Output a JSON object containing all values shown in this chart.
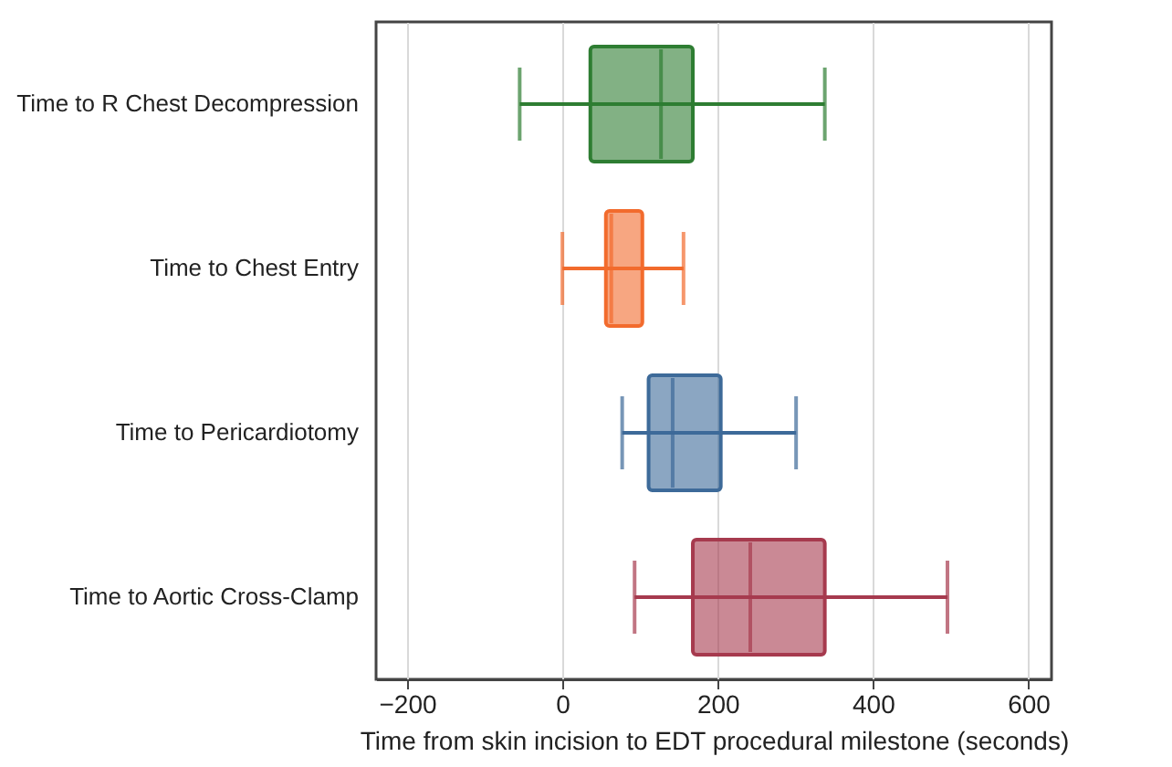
{
  "chart_data": {
    "type": "box",
    "orientation": "horizontal",
    "categories": [
      "Time to R Chest Decompression",
      "Time to Chest Entry",
      "Time to Pericardiotomy",
      "Time to Aortic Cross-Clamp"
    ],
    "boxes": [
      {
        "low": -55,
        "q1": 36,
        "median": 127,
        "q3": 168,
        "high": 338
      },
      {
        "low": 0,
        "q1": 56,
        "median": 63,
        "q3": 103,
        "high": 156
      },
      {
        "low": 77,
        "q1": 111,
        "median": 142,
        "q3": 204,
        "high": 301
      },
      {
        "low": 93,
        "q1": 168,
        "median": 242,
        "q3": 338,
        "high": 496
      }
    ],
    "colors": [
      "#2e7d32",
      "#f26b2d",
      "#3d6a99",
      "#a63a4e"
    ],
    "xlabel": "Time from skin incision to EDT procedural milestone (seconds)",
    "xlim": [
      -240,
      630
    ],
    "xticks": [
      -200,
      0,
      200,
      400,
      600
    ],
    "grid": "x"
  }
}
